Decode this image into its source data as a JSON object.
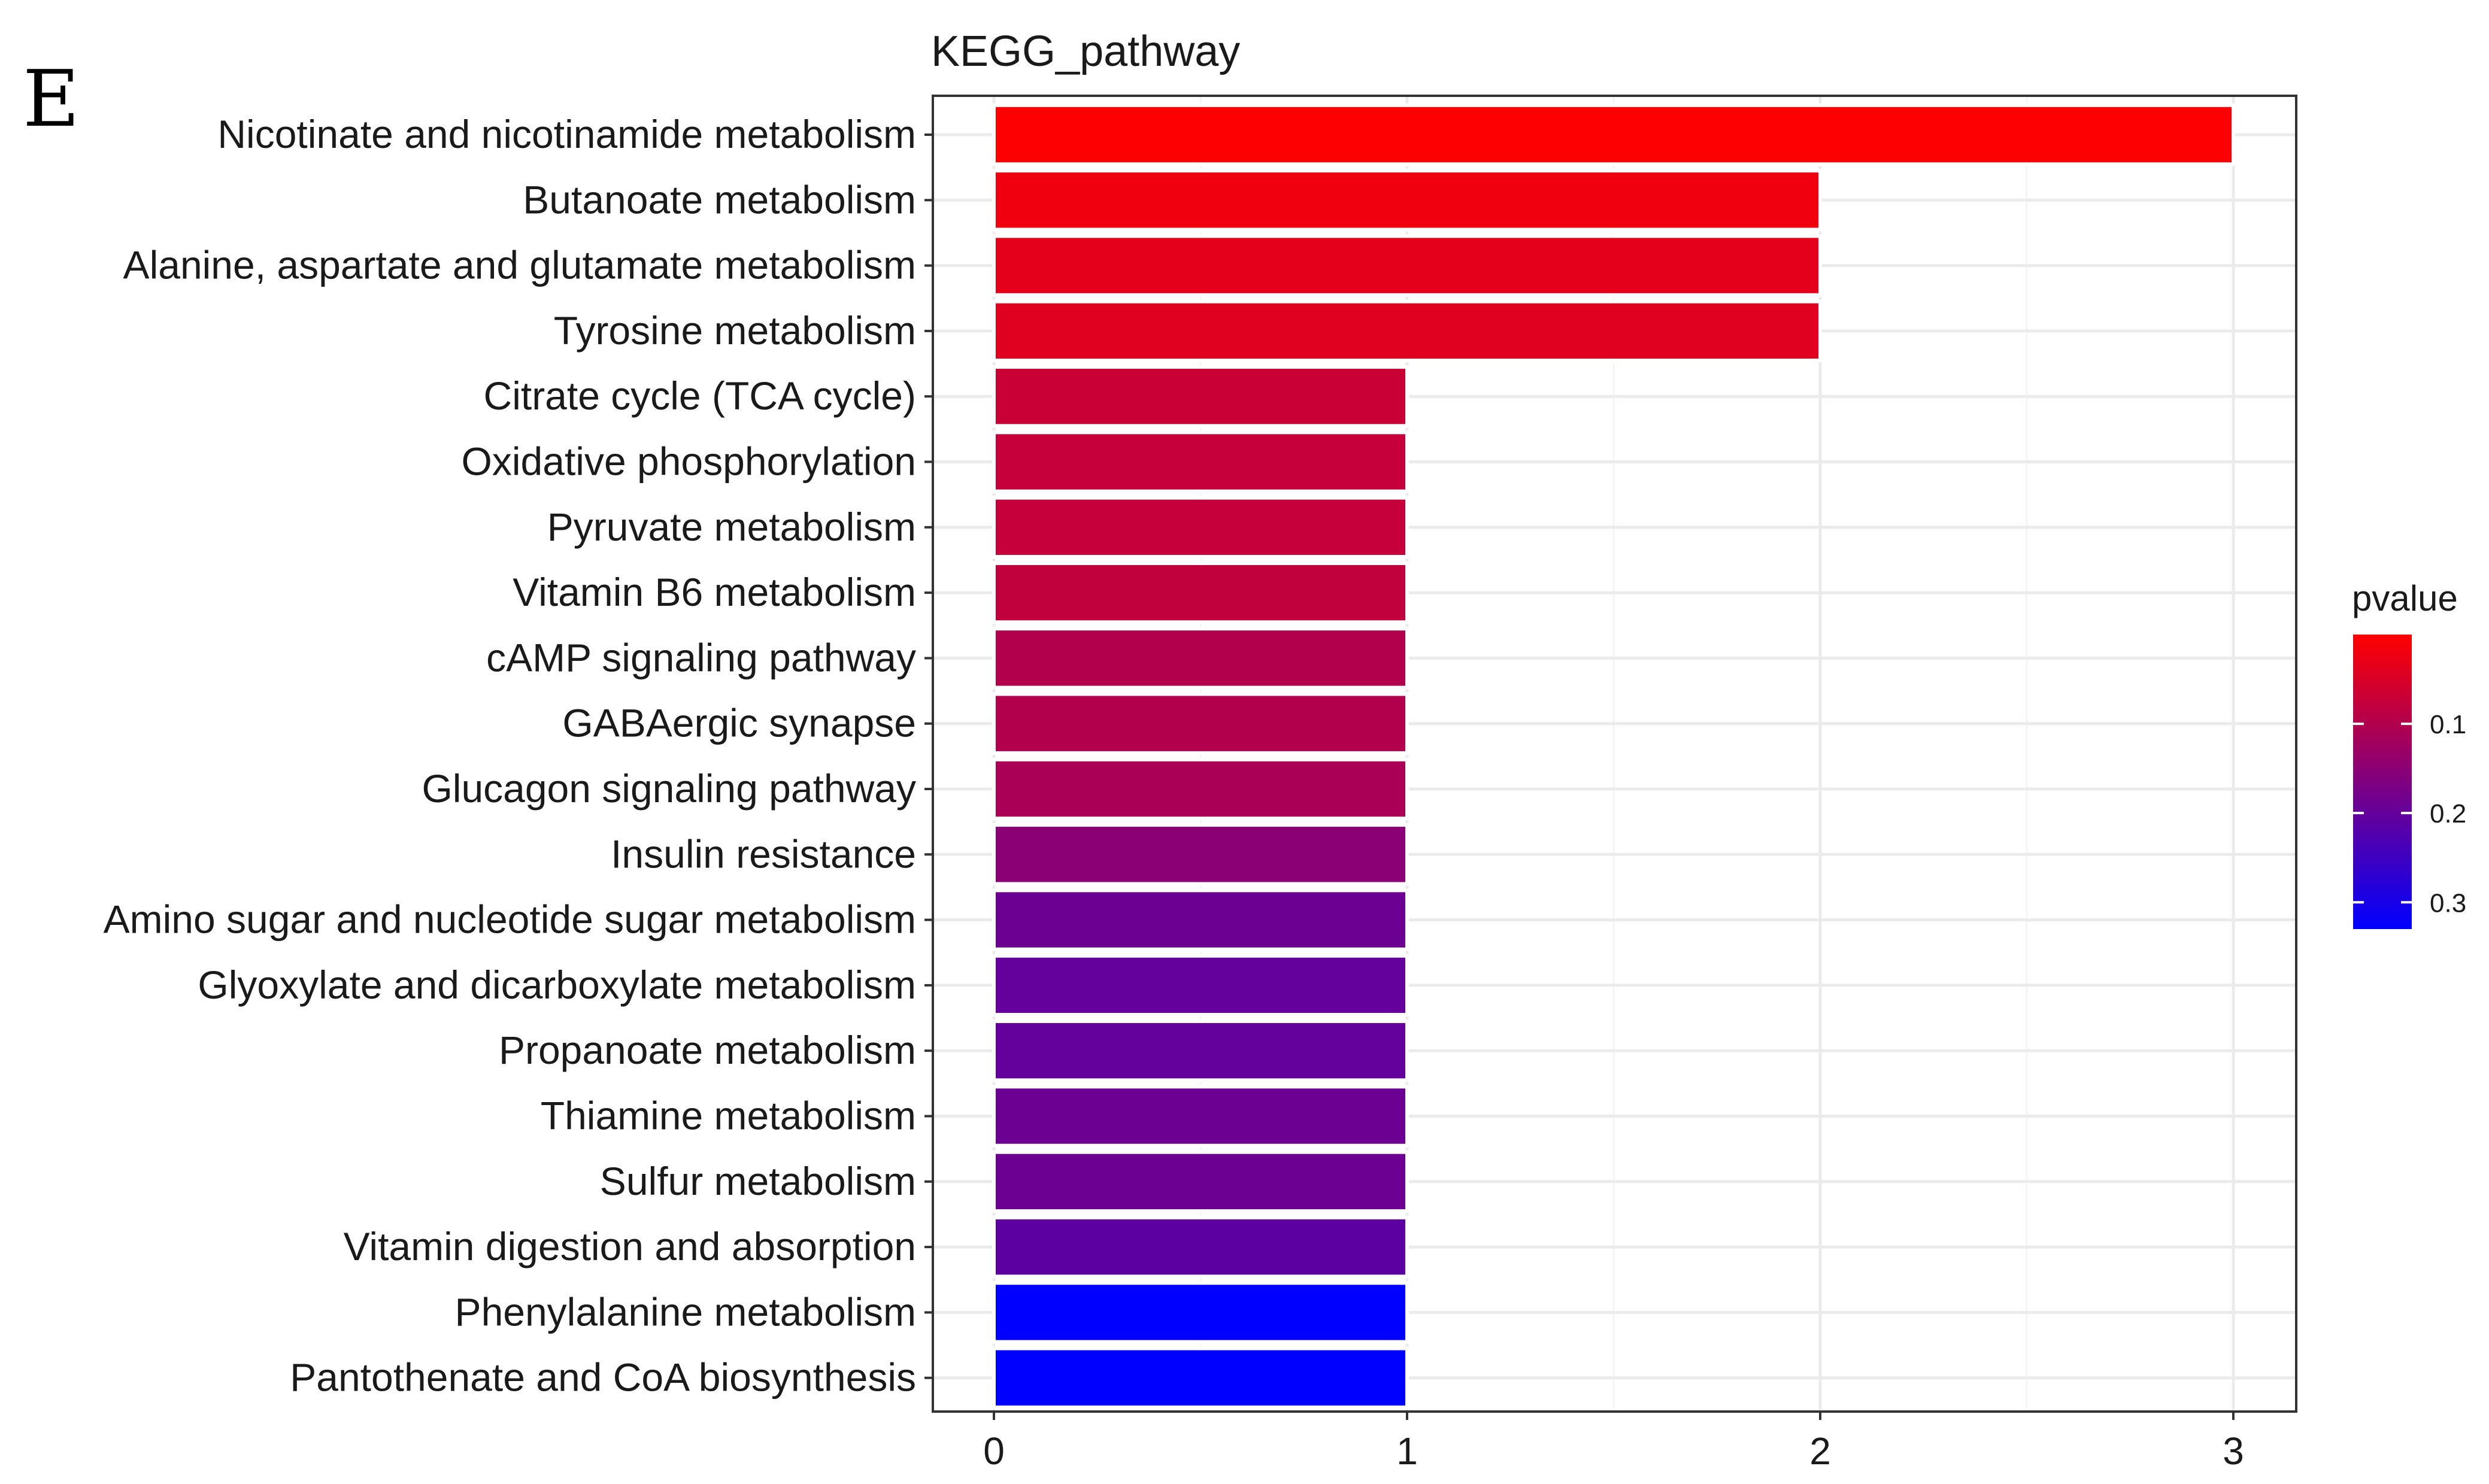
{
  "panel_label": "E",
  "chart_data": {
    "type": "bar",
    "orientation": "horizontal",
    "title": "KEGG_pathway",
    "xlabel": "",
    "ylabel": "",
    "xlim": [
      0,
      3
    ],
    "x_ticks": [
      0,
      1,
      2,
      3
    ],
    "x_tick_labels": [
      "0",
      "1",
      "2",
      "3"
    ],
    "grid": true,
    "categories": [
      "Nicotinate and nicotinamide metabolism",
      "Butanoate metabolism",
      "Alanine, aspartate and glutamate metabolism",
      "Tyrosine metabolism",
      "Citrate cycle (TCA cycle)",
      "Oxidative phosphorylation",
      "Pyruvate metabolism",
      "Vitamin B6 metabolism",
      "cAMP signaling pathway",
      "GABAergic synapse",
      "Glucagon signaling pathway",
      "Insulin resistance",
      "Amino sugar and nucleotide sugar metabolism",
      "Glyoxylate and dicarboxylate metabolism",
      "Propanoate metabolism",
      "Thiamine metabolism",
      "Sulfur metabolism",
      "Vitamin digestion and absorption",
      "Phenylalanine metabolism",
      "Pantothenate and CoA biosynthesis"
    ],
    "values": [
      3,
      2,
      2,
      2,
      1,
      1,
      1,
      1,
      1,
      1,
      1,
      1,
      1,
      1,
      1,
      1,
      1,
      1,
      1,
      1
    ],
    "pvalue": [
      0.002,
      0.02,
      0.035,
      0.04,
      0.07,
      0.075,
      0.075,
      0.08,
      0.1,
      0.1,
      0.11,
      0.15,
      0.19,
      0.2,
      0.2,
      0.19,
      0.19,
      0.21,
      0.33,
      0.33
    ],
    "color_scale": {
      "title": "pvalue",
      "low_color": "#ff0000",
      "high_color": "#0000ff",
      "range": [
        0,
        0.33
      ],
      "ticks": [
        0.1,
        0.2,
        0.3
      ],
      "tick_labels": [
        "0.1",
        "0.2",
        "0.3"
      ],
      "legend_position": "right"
    },
    "colors": {
      "panel_border": "#333333",
      "grid_major": "#ebebeb",
      "grid_minor": "#f4f4f4",
      "bar_separator": "#ffffff"
    }
  }
}
